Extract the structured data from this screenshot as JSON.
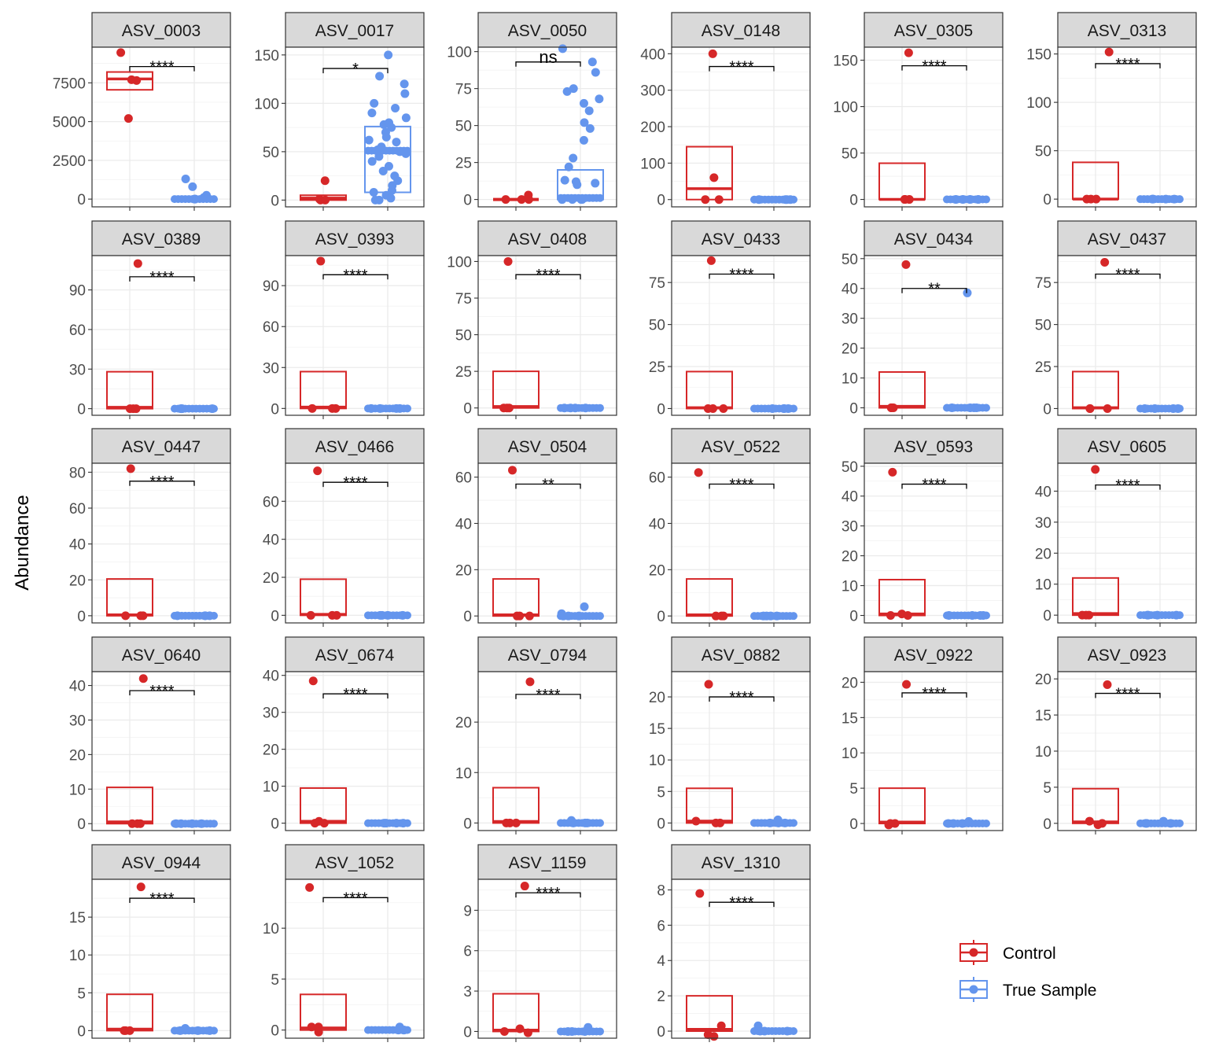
{
  "chart_data": {
    "type": "boxplot-facets",
    "ylabel": "Abundance",
    "legend": {
      "placement": "bottom-right",
      "entries": [
        {
          "label": "Control",
          "color": "#D62728"
        },
        {
          "label": "True Sample",
          "color": "#6495ED"
        }
      ]
    },
    "colors": {
      "control": "#D62728",
      "true_sample": "#6495ED",
      "strip": "#D9D9D9",
      "grid": "#EBEBEB",
      "axis_text": "#4D4D4D"
    },
    "panels": [
      {
        "name": "ASV_0003",
        "ylim": [
          -500,
          9800
        ],
        "yticks": [
          0,
          2500,
          5000,
          7500
        ],
        "sig": "****",
        "sig_y": 8550,
        "control_box": [
          7050,
          7750,
          8200
        ],
        "control_points": [
          9450,
          7650,
          7700,
          5200
        ],
        "true_box": [
          0,
          0,
          0
        ],
        "true_points": [
          800,
          1300,
          250,
          100,
          0,
          0,
          0
        ]
      },
      {
        "name": "ASV_0017",
        "ylim": [
          -7,
          158
        ],
        "yticks": [
          0,
          50,
          100,
          150
        ],
        "sig": "*",
        "sig_y": 136,
        "control_box": [
          0,
          2,
          5
        ],
        "control_points": [
          20,
          1,
          0,
          0
        ],
        "true_box": [
          8,
          51,
          76
        ],
        "true_points": [
          150,
          128,
          120,
          110,
          100,
          95,
          90,
          85,
          80,
          78,
          75,
          70,
          65,
          62,
          60,
          55,
          52,
          50,
          48,
          45,
          40,
          35,
          30,
          25,
          20,
          15,
          10,
          8,
          5,
          2,
          0,
          0
        ]
      },
      {
        "name": "ASV_0050",
        "ylim": [
          -5,
          103
        ],
        "yticks": [
          0,
          25,
          50,
          75,
          100
        ],
        "sig": "ns",
        "sig_y": 93,
        "control_box": [
          0,
          0,
          0
        ],
        "control_points": [
          3,
          0,
          0,
          0
        ],
        "true_box": [
          0,
          1,
          20
        ],
        "true_points": [
          102,
          93,
          86,
          75,
          73,
          68,
          65,
          60,
          52,
          48,
          40,
          28,
          22,
          13,
          12,
          11,
          10,
          0,
          0,
          0,
          0,
          0
        ]
      },
      {
        "name": "ASV_0148",
        "ylim": [
          -20,
          418
        ],
        "yticks": [
          0,
          100,
          200,
          300,
          400
        ],
        "sig": "****",
        "sig_y": 365,
        "control_box": [
          0,
          30,
          145
        ],
        "control_points": [
          400,
          60,
          0,
          0
        ],
        "true_box": [
          0,
          0,
          0
        ],
        "true_points": [
          0,
          0,
          0,
          0
        ]
      },
      {
        "name": "ASV_0305",
        "ylim": [
          -8,
          164
        ],
        "yticks": [
          0,
          50,
          100,
          150
        ],
        "sig": "****",
        "sig_y": 144,
        "control_box": [
          0,
          0,
          39
        ],
        "control_points": [
          158,
          0,
          0,
          0
        ],
        "true_box": [
          0,
          0,
          0
        ],
        "true_points": [
          0,
          0,
          0,
          0
        ]
      },
      {
        "name": "ASV_0313",
        "ylim": [
          -8,
          157
        ],
        "yticks": [
          0,
          50,
          100,
          150
        ],
        "sig": "****",
        "sig_y": 140,
        "control_box": [
          0,
          0,
          38
        ],
        "control_points": [
          152,
          0,
          0,
          0
        ],
        "true_box": [
          0,
          0,
          0
        ],
        "true_points": [
          0,
          0,
          0,
          0
        ]
      },
      {
        "name": "ASV_0389",
        "ylim": [
          -5,
          116
        ],
        "yticks": [
          0,
          30,
          60,
          90
        ],
        "sig": "****",
        "sig_y": 100,
        "control_box": [
          0,
          1,
          28
        ],
        "control_points": [
          110,
          0,
          0,
          0
        ],
        "true_box": [
          0,
          0,
          0
        ],
        "true_points": [
          0,
          0,
          0,
          0
        ]
      },
      {
        "name": "ASV_0393",
        "ylim": [
          -5,
          112
        ],
        "yticks": [
          0,
          30,
          60,
          90
        ],
        "sig": "****",
        "sig_y": 98,
        "control_box": [
          0,
          1,
          27
        ],
        "control_points": [
          108,
          0,
          0,
          0
        ],
        "true_box": [
          0,
          0,
          0
        ],
        "true_points": [
          0,
          0,
          0,
          0
        ]
      },
      {
        "name": "ASV_0408",
        "ylim": [
          -5,
          104
        ],
        "yticks": [
          0,
          25,
          50,
          75,
          100
        ],
        "sig": "****",
        "sig_y": 91,
        "control_box": [
          0,
          1,
          25
        ],
        "control_points": [
          100,
          0,
          0,
          0
        ],
        "true_box": [
          0,
          0,
          0
        ],
        "true_points": [
          0,
          0,
          0,
          0
        ]
      },
      {
        "name": "ASV_0433",
        "ylim": [
          -4,
          91
        ],
        "yticks": [
          0,
          25,
          50,
          75
        ],
        "sig": "****",
        "sig_y": 80,
        "control_box": [
          0,
          0.5,
          22
        ],
        "control_points": [
          88,
          0,
          0,
          0
        ],
        "true_box": [
          0,
          0,
          0
        ],
        "true_points": [
          0,
          0,
          0,
          0
        ]
      },
      {
        "name": "ASV_0434",
        "ylim": [
          -2.5,
          51
        ],
        "yticks": [
          0,
          10,
          20,
          30,
          40,
          50
        ],
        "sig": "**",
        "sig_y": 40,
        "control_box": [
          0,
          0.5,
          12
        ],
        "control_points": [
          48,
          0,
          0,
          0
        ],
        "true_box": [
          0,
          0,
          0
        ],
        "true_points": [
          38.5,
          0,
          0,
          0,
          0
        ]
      },
      {
        "name": "ASV_0437",
        "ylim": [
          -4,
          91
        ],
        "yticks": [
          0,
          25,
          50,
          75
        ],
        "sig": "****",
        "sig_y": 80,
        "control_box": [
          0,
          0.5,
          22
        ],
        "control_points": [
          87,
          0,
          0,
          0
        ],
        "true_box": [
          0,
          0,
          0
        ],
        "true_points": [
          0,
          0,
          0,
          0
        ]
      },
      {
        "name": "ASV_0447",
        "ylim": [
          -4,
          85
        ],
        "yticks": [
          0,
          20,
          40,
          60,
          80
        ],
        "sig": "****",
        "sig_y": 75,
        "control_box": [
          0,
          0.5,
          20.5
        ],
        "control_points": [
          82,
          0,
          0,
          0
        ],
        "true_box": [
          0,
          0,
          0
        ],
        "true_points": [
          0,
          0,
          0,
          0
        ]
      },
      {
        "name": "ASV_0466",
        "ylim": [
          -4,
          80
        ],
        "yticks": [
          0,
          20,
          40,
          60
        ],
        "sig": "****",
        "sig_y": 70,
        "control_box": [
          0,
          0.5,
          19
        ],
        "control_points": [
          76,
          0,
          0,
          0
        ],
        "true_box": [
          0,
          0,
          0
        ],
        "true_points": [
          0,
          0,
          0,
          0
        ]
      },
      {
        "name": "ASV_0504",
        "ylim": [
          -3,
          66
        ],
        "yticks": [
          0,
          20,
          40,
          60
        ],
        "sig": "**",
        "sig_y": 57,
        "control_box": [
          0,
          0.5,
          16
        ],
        "control_points": [
          63,
          0,
          0,
          0
        ],
        "true_box": [
          0,
          0,
          0
        ],
        "true_points": [
          4,
          1,
          0,
          0,
          0
        ]
      },
      {
        "name": "ASV_0522",
        "ylim": [
          -3,
          66
        ],
        "yticks": [
          0,
          20,
          40,
          60
        ],
        "sig": "****",
        "sig_y": 57,
        "control_box": [
          0,
          0.5,
          16
        ],
        "control_points": [
          62,
          0,
          0,
          0
        ],
        "true_box": [
          0,
          0,
          0
        ],
        "true_points": [
          0,
          0,
          0,
          0
        ]
      },
      {
        "name": "ASV_0593",
        "ylim": [
          -2.5,
          51
        ],
        "yticks": [
          0,
          10,
          20,
          30,
          40,
          50
        ],
        "sig": "****",
        "sig_y": 44,
        "control_box": [
          0,
          0.5,
          12
        ],
        "control_points": [
          48,
          0.5,
          0,
          0
        ],
        "true_box": [
          0,
          0,
          0
        ],
        "true_points": [
          0,
          0,
          0,
          0
        ]
      },
      {
        "name": "ASV_0605",
        "ylim": [
          -2.5,
          49
        ],
        "yticks": [
          0,
          10,
          20,
          30,
          40
        ],
        "sig": "****",
        "sig_y": 42,
        "control_box": [
          0,
          0.5,
          12
        ],
        "control_points": [
          47,
          0,
          0,
          0
        ],
        "true_box": [
          0,
          0,
          0
        ],
        "true_points": [
          0,
          0,
          0,
          0
        ]
      },
      {
        "name": "ASV_0640",
        "ylim": [
          -2,
          44
        ],
        "yticks": [
          0,
          10,
          20,
          30,
          40
        ],
        "sig": "****",
        "sig_y": 38.5,
        "control_box": [
          0,
          0.5,
          10.5
        ],
        "control_points": [
          42,
          0,
          0,
          0
        ],
        "true_box": [
          0,
          0,
          0
        ],
        "true_points": [
          0,
          0,
          0,
          0
        ]
      },
      {
        "name": "ASV_0674",
        "ylim": [
          -2,
          41
        ],
        "yticks": [
          0,
          10,
          20,
          30,
          40
        ],
        "sig": "****",
        "sig_y": 35,
        "control_box": [
          0,
          0.5,
          9.5
        ],
        "control_points": [
          38.5,
          0.5,
          0,
          0
        ],
        "true_box": [
          0,
          0,
          0
        ],
        "true_points": [
          0,
          0,
          0,
          0
        ]
      },
      {
        "name": "ASV_0794",
        "ylim": [
          -1.5,
          30
        ],
        "yticks": [
          0,
          10,
          20
        ],
        "sig": "****",
        "sig_y": 25.5,
        "control_box": [
          0,
          0.3,
          7
        ],
        "control_points": [
          28,
          0,
          0,
          0
        ],
        "true_box": [
          0,
          0,
          0
        ],
        "true_points": [
          0.5,
          0,
          0,
          0
        ]
      },
      {
        "name": "ASV_0882",
        "ylim": [
          -1.2,
          24
        ],
        "yticks": [
          0,
          5,
          10,
          15,
          20
        ],
        "sig": "****",
        "sig_y": 20,
        "control_box": [
          0,
          0.3,
          5.5
        ],
        "control_points": [
          22,
          0.3,
          0,
          0
        ],
        "true_box": [
          0,
          0,
          0
        ],
        "true_points": [
          0.5,
          0,
          0,
          0
        ]
      },
      {
        "name": "ASV_0922",
        "ylim": [
          -1,
          21.5
        ],
        "yticks": [
          0,
          5,
          10,
          15,
          20
        ],
        "sig": "****",
        "sig_y": 18.5,
        "control_box": [
          0,
          0.2,
          5
        ],
        "control_points": [
          19.7,
          -0.2,
          0,
          0
        ],
        "true_box": [
          0,
          0,
          0
        ],
        "true_points": [
          0.3,
          0,
          0,
          0
        ]
      },
      {
        "name": "ASV_0923",
        "ylim": [
          -1,
          21
        ],
        "yticks": [
          0,
          5,
          10,
          15,
          20
        ],
        "sig": "****",
        "sig_y": 18,
        "control_box": [
          0,
          0.2,
          4.8
        ],
        "control_points": [
          19.2,
          0.3,
          0,
          -0.2
        ],
        "true_box": [
          0,
          0,
          0
        ],
        "true_points": [
          0.3,
          0,
          0,
          0
        ]
      },
      {
        "name": "ASV_0944",
        "ylim": [
          -1,
          20
        ],
        "yticks": [
          0,
          5,
          10,
          15
        ],
        "sig": "****",
        "sig_y": 17.5,
        "control_box": [
          0,
          0.2,
          4.8
        ],
        "control_points": [
          19,
          0,
          0,
          0
        ],
        "true_box": [
          0,
          0,
          0
        ],
        "true_points": [
          0.3,
          0,
          0,
          0
        ]
      },
      {
        "name": "ASV_1052",
        "ylim": [
          -0.8,
          14.8
        ],
        "yticks": [
          0,
          5,
          10
        ],
        "sig": "****",
        "sig_y": 13,
        "control_box": [
          0,
          0.2,
          3.5
        ],
        "control_points": [
          14,
          0.3,
          0.3,
          -0.2
        ],
        "true_box": [
          0,
          0,
          0
        ],
        "true_points": [
          0.3,
          0,
          0,
          0
        ]
      },
      {
        "name": "ASV_1159",
        "ylim": [
          -0.5,
          11.3
        ],
        "yticks": [
          0,
          3,
          6,
          9
        ],
        "sig": "****",
        "sig_y": 10.3,
        "control_box": [
          0,
          0.1,
          2.8
        ],
        "control_points": [
          10.8,
          0.2,
          0,
          -0.1
        ],
        "true_box": [
          0,
          0,
          0
        ],
        "true_points": [
          0.3,
          0,
          0,
          0
        ]
      },
      {
        "name": "ASV_1310",
        "ylim": [
          -0.4,
          8.6
        ],
        "yticks": [
          0,
          2,
          4,
          6,
          8
        ],
        "sig": "****",
        "sig_y": 7.3,
        "control_box": [
          0,
          0.1,
          2
        ],
        "control_points": [
          7.8,
          0.3,
          -0.2,
          -0.3
        ],
        "true_box": [
          0,
          0,
          0
        ],
        "true_points": [
          0.3,
          0,
          0,
          0
        ]
      }
    ]
  }
}
